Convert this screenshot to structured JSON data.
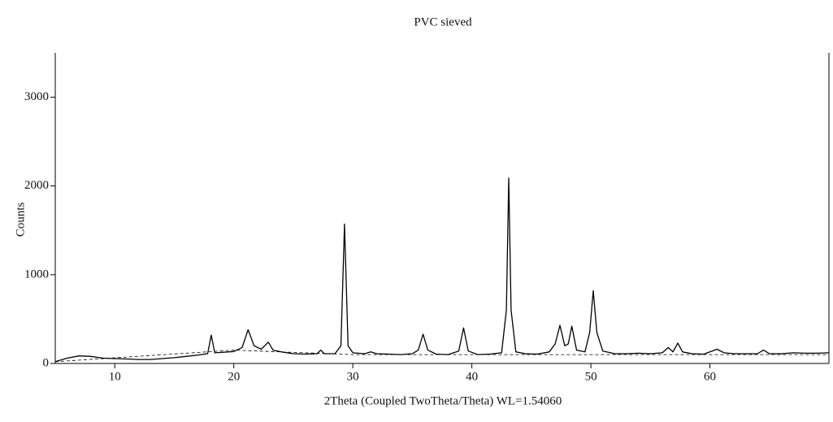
{
  "chart_data": {
    "type": "line",
    "title": "PVC sieved",
    "x_label": "2Theta (Coupled TwoTheta/Theta) WL=1.54060",
    "y_label": "Counts",
    "xlim": [
      5,
      70
    ],
    "ylim": [
      0,
      3500
    ],
    "xticks": [
      10,
      20,
      30,
      40,
      50,
      60
    ],
    "yticks": [
      0,
      1000,
      2000,
      3000
    ],
    "series": [
      {
        "color": "#000000",
        "style": "solid",
        "x": [
          5,
          6,
          7,
          8,
          9,
          10,
          11,
          12,
          13,
          14,
          15,
          16,
          17,
          17.8,
          18.1,
          18.4,
          19,
          20,
          20.7,
          21.2,
          21.7,
          22.3,
          22.9,
          23.3,
          24,
          25,
          26,
          27,
          27.3,
          27.6,
          28.5,
          29.0,
          29.3,
          29.6,
          30,
          31,
          31.5,
          32,
          33,
          34,
          35,
          35.5,
          35.9,
          36.3,
          37,
          38,
          38.9,
          39.3,
          39.7,
          40.5,
          41.5,
          42.5,
          42.9,
          43.1,
          43.3,
          43.7,
          44.5,
          45.5,
          46.5,
          47.0,
          47.4,
          47.8,
          48.1,
          48.4,
          48.8,
          49.5,
          49.9,
          50.2,
          50.5,
          51,
          52,
          53,
          54,
          55,
          56,
          56.5,
          56.9,
          57.3,
          57.7,
          58.5,
          59.5,
          60.6,
          61.2,
          62,
          63,
          64,
          64.5,
          65,
          66,
          67,
          68,
          69,
          70
        ],
        "values": [
          20,
          60,
          85,
          80,
          60,
          55,
          50,
          45,
          45,
          55,
          65,
          80,
          95,
          110,
          320,
          120,
          125,
          135,
          180,
          380,
          200,
          160,
          240,
          150,
          130,
          110,
          105,
          110,
          150,
          110,
          110,
          200,
          1570,
          200,
          120,
          110,
          130,
          110,
          105,
          100,
          110,
          150,
          330,
          150,
          105,
          100,
          140,
          400,
          140,
          100,
          105,
          120,
          600,
          2090,
          600,
          130,
          110,
          105,
          130,
          220,
          430,
          200,
          220,
          420,
          150,
          130,
          350,
          820,
          350,
          140,
          110,
          110,
          115,
          110,
          120,
          180,
          130,
          230,
          130,
          110,
          105,
          160,
          120,
          110,
          110,
          110,
          150,
          110,
          110,
          120,
          115,
          115,
          120
        ]
      },
      {
        "color": "#000000",
        "style": "dashed",
        "x": [
          5,
          20,
          30,
          70
        ],
        "values": [
          20,
          150,
          100,
          100
        ]
      }
    ]
  }
}
